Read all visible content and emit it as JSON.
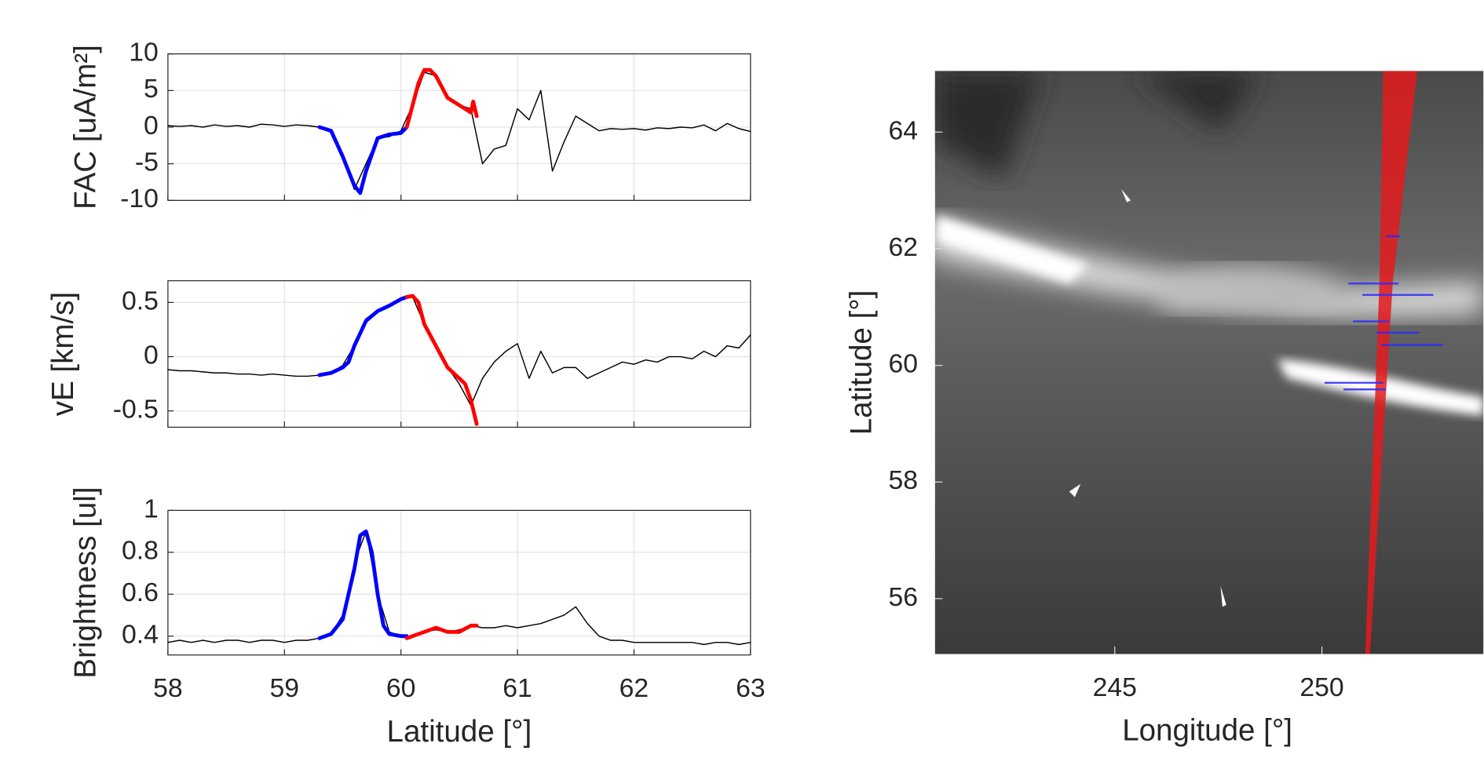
{
  "chart_data": [
    {
      "type": "line",
      "ylabel": "FAC [uA/m²]",
      "xlim": [
        58,
        63
      ],
      "xticks": [
        58,
        59,
        60,
        61,
        62,
        63
      ],
      "xticklabels": false,
      "ylim": [
        -10,
        10
      ],
      "yticks": [
        -10,
        -5,
        0,
        5,
        10
      ],
      "grid": true,
      "series": [
        {
          "color": "#000000",
          "x": [
            58.0,
            58.1,
            58.2,
            58.3,
            58.4,
            58.5,
            58.6,
            58.7,
            58.8,
            58.9,
            59.0,
            59.1,
            59.2,
            59.3,
            59.4,
            59.5,
            59.6,
            59.7,
            59.8,
            59.9,
            60.0,
            60.1,
            60.2,
            60.3,
            60.4,
            60.5,
            60.6,
            60.7,
            60.8,
            60.9,
            61.0,
            61.1,
            61.2,
            61.3,
            61.4,
            61.5,
            61.6,
            61.7,
            61.8,
            61.9,
            62.0,
            62.1,
            62.2,
            62.3,
            62.4,
            62.5,
            62.6,
            62.7,
            62.8,
            62.9,
            63.0
          ],
          "values": [
            0.2,
            0.1,
            0.2,
            0,
            0.3,
            0.1,
            0.2,
            0,
            0.4,
            0.3,
            0.1,
            0.3,
            0.2,
            0,
            -0.5,
            -4,
            -8.5,
            -5,
            -1.5,
            -1.3,
            -0.5,
            3,
            7.5,
            7,
            4,
            3,
            2.5,
            -5,
            -3,
            -2.5,
            2.5,
            1,
            5,
            -6,
            -2,
            1.5,
            0.5,
            -0.5,
            -0.2,
            -0.3,
            -0.2,
            -0.4,
            -0.1,
            -0.2,
            0,
            -0.1,
            0.3,
            -0.5,
            0.5,
            -0.2,
            -0.6
          ]
        },
        {
          "color": "#0000ff",
          "x": [
            59.3,
            59.4,
            59.5,
            59.55,
            59.6,
            59.65,
            59.7,
            59.8,
            59.9,
            60.0,
            60.05
          ],
          "values": [
            0,
            -0.5,
            -4,
            -6,
            -8,
            -9,
            -6,
            -1.5,
            -1,
            -0.8,
            0
          ]
        },
        {
          "color": "#ff0000",
          "x": [
            60.05,
            60.1,
            60.15,
            60.2,
            60.25,
            60.3,
            60.4,
            60.5,
            60.6,
            60.62,
            60.65
          ],
          "values": [
            0,
            3,
            6,
            7.8,
            7.8,
            7,
            4,
            3,
            2,
            3.5,
            1.5
          ]
        }
      ]
    },
    {
      "type": "line",
      "ylabel": "vE [km/s]",
      "xlim": [
        58,
        63
      ],
      "xticks": [
        58,
        59,
        60,
        61,
        62,
        63
      ],
      "xticklabels": false,
      "ylim": [
        -0.65,
        0.7
      ],
      "yticks": [
        -0.5,
        0,
        0.5
      ],
      "grid": true,
      "series": [
        {
          "color": "#000000",
          "x": [
            58.0,
            58.1,
            58.2,
            58.3,
            58.4,
            58.5,
            58.6,
            58.7,
            58.8,
            58.9,
            59.0,
            59.1,
            59.2,
            59.3,
            59.4,
            59.5,
            59.6,
            59.7,
            59.8,
            59.9,
            60.0,
            60.1,
            60.2,
            60.3,
            60.4,
            60.5,
            60.6,
            60.7,
            60.8,
            60.9,
            61.0,
            61.1,
            61.2,
            61.3,
            61.4,
            61.5,
            61.6,
            61.7,
            61.8,
            61.9,
            62.0,
            62.1,
            62.2,
            62.3,
            62.4,
            62.5,
            62.6,
            62.7,
            62.8,
            62.9,
            63.0
          ],
          "values": [
            -0.12,
            -0.13,
            -0.13,
            -0.14,
            -0.15,
            -0.15,
            -0.16,
            -0.16,
            -0.17,
            -0.16,
            -0.17,
            -0.18,
            -0.18,
            -0.17,
            -0.15,
            -0.08,
            0.1,
            0.35,
            0.42,
            0.48,
            0.54,
            0.55,
            0.3,
            0.12,
            -0.1,
            -0.25,
            -0.45,
            -0.2,
            -0.05,
            0.05,
            0.12,
            -0.2,
            0.05,
            -0.15,
            -0.1,
            -0.1,
            -0.2,
            -0.15,
            -0.1,
            -0.05,
            -0.07,
            -0.03,
            -0.05,
            0,
            0,
            -0.02,
            0.05,
            0,
            0.1,
            0.08,
            0.2
          ]
        },
        {
          "color": "#0000ff",
          "x": [
            59.3,
            59.4,
            59.5,
            59.55,
            59.6,
            59.7,
            59.8,
            59.9,
            60.0,
            60.05
          ],
          "values": [
            -0.17,
            -0.15,
            -0.1,
            -0.05,
            0.1,
            0.33,
            0.42,
            0.47,
            0.53,
            0.55
          ]
        },
        {
          "color": "#ff0000",
          "x": [
            60.05,
            60.1,
            60.15,
            60.2,
            60.3,
            60.4,
            60.5,
            60.55,
            60.6,
            60.65
          ],
          "values": [
            0.55,
            0.56,
            0.5,
            0.3,
            0.1,
            -0.1,
            -0.2,
            -0.25,
            -0.4,
            -0.62
          ]
        }
      ]
    },
    {
      "type": "line",
      "ylabel": "Brightness [ul]",
      "xlabel": "Latitude [°]",
      "xlim": [
        58,
        63
      ],
      "xticks": [
        58,
        59,
        60,
        61,
        62,
        63
      ],
      "xticklabels": true,
      "ylim": [
        0.31,
        1
      ],
      "yticks": [
        0.4,
        0.6,
        0.8,
        1
      ],
      "grid": true,
      "series": [
        {
          "color": "#000000",
          "x": [
            58.0,
            58.1,
            58.2,
            58.3,
            58.4,
            58.5,
            58.6,
            58.7,
            58.8,
            58.9,
            59.0,
            59.1,
            59.2,
            59.3,
            59.4,
            59.5,
            59.6,
            59.7,
            59.8,
            59.9,
            60.0,
            60.1,
            60.2,
            60.3,
            60.4,
            60.5,
            60.6,
            60.7,
            60.8,
            60.9,
            61.0,
            61.1,
            61.2,
            61.3,
            61.4,
            61.5,
            61.6,
            61.7,
            61.8,
            61.9,
            62.0,
            62.1,
            62.2,
            62.3,
            62.4,
            62.5,
            62.6,
            62.7,
            62.8,
            62.9,
            63.0
          ],
          "values": [
            0.37,
            0.38,
            0.37,
            0.38,
            0.37,
            0.38,
            0.38,
            0.37,
            0.38,
            0.38,
            0.37,
            0.38,
            0.38,
            0.39,
            0.41,
            0.5,
            0.75,
            0.9,
            0.6,
            0.42,
            0.4,
            0.4,
            0.42,
            0.43,
            0.42,
            0.43,
            0.45,
            0.44,
            0.44,
            0.45,
            0.44,
            0.45,
            0.46,
            0.48,
            0.5,
            0.54,
            0.46,
            0.4,
            0.38,
            0.38,
            0.37,
            0.37,
            0.37,
            0.37,
            0.37,
            0.37,
            0.36,
            0.37,
            0.37,
            0.36,
            0.37
          ]
        },
        {
          "color": "#0000ff",
          "x": [
            59.3,
            59.4,
            59.5,
            59.55,
            59.6,
            59.65,
            59.7,
            59.75,
            59.8,
            59.85,
            59.9,
            60.0,
            60.05
          ],
          "values": [
            0.39,
            0.41,
            0.48,
            0.6,
            0.72,
            0.88,
            0.9,
            0.8,
            0.6,
            0.45,
            0.41,
            0.4,
            0.4
          ]
        },
        {
          "color": "#ff0000",
          "x": [
            60.05,
            60.1,
            60.2,
            60.3,
            60.4,
            60.5,
            60.6,
            60.65
          ],
          "values": [
            0.39,
            0.4,
            0.42,
            0.44,
            0.42,
            0.42,
            0.45,
            0.45
          ]
        }
      ]
    },
    {
      "type": "image",
      "ylabel": "Latitude [°]",
      "xlabel": "Longitude [°]",
      "xlim": [
        240.66,
        253.9
      ],
      "xticks": [
        245,
        250
      ],
      "ylim": [
        55.05,
        65.05
      ],
      "yticks": [
        56,
        58,
        60,
        62,
        64
      ]
    }
  ]
}
